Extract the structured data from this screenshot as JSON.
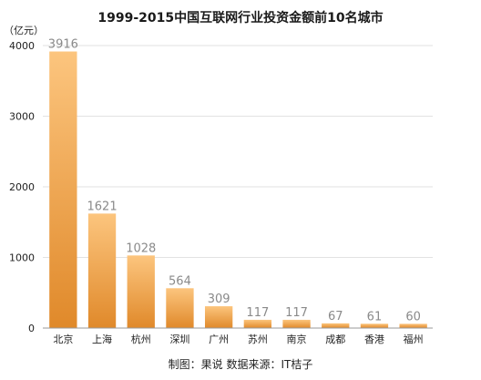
{
  "chart_data": {
    "type": "bar",
    "title": "1999-2015中国互联网行业投资金额前10名城市",
    "unit_label": "（亿元）",
    "categories": [
      "北京",
      "上海",
      "杭州",
      "深圳",
      "广州",
      "苏州",
      "南京",
      "成都",
      "香港",
      "福州"
    ],
    "values": [
      3916,
      1621,
      1028,
      564,
      309,
      117,
      117,
      67,
      61,
      60
    ],
    "y_ticks": [
      0,
      1000,
      2000,
      3000,
      4000
    ],
    "ylim": [
      0,
      4000
    ],
    "grid": true,
    "bar_colors": {
      "top": "#fcc57e",
      "bottom": "#e0892a"
    },
    "value_label_color": "#8a8a8a"
  },
  "footer": "制图：果说  数据来源：IT桔子"
}
